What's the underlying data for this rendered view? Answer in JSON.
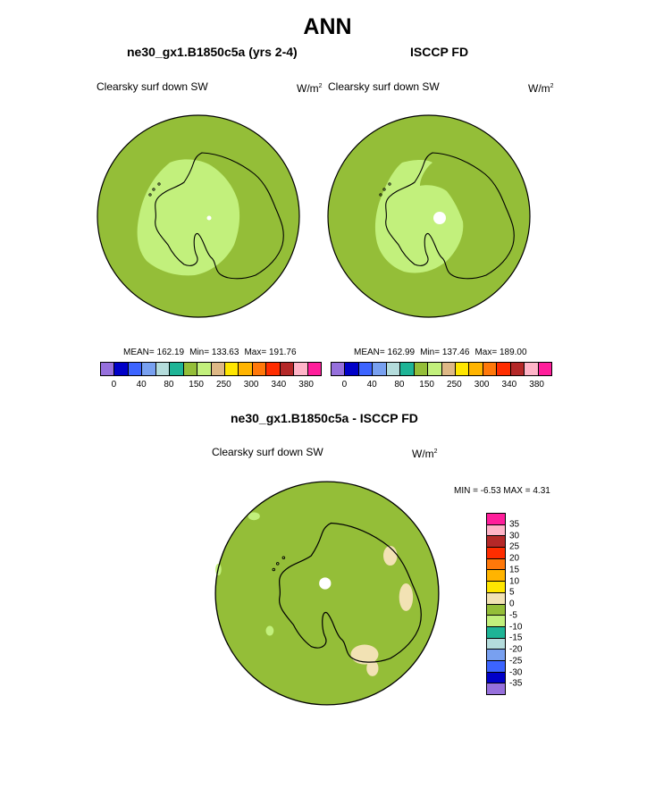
{
  "page_title": "ANN",
  "colors": {
    "background_field": "#94be38",
    "light_field": "#c2f07c",
    "tan_field": "#f2e2b4",
    "coast": "#000000",
    "missing": "#ffffff"
  },
  "palette": [
    "#9670dc",
    "#0000c8",
    "#3c64ff",
    "#78a0f0",
    "#b4dcdc",
    "#1eb496",
    "#94be38",
    "#c2f07c",
    "#deb886",
    "#ffe600",
    "#ffb400",
    "#ff780a",
    "#ff2d00",
    "#b42828",
    "#ffb4c8",
    "#ff1e9b"
  ],
  "diff_palette": [
    "#9670dc",
    "#0000c8",
    "#3c64ff",
    "#78a0f0",
    "#b4dcdc",
    "#1eb496",
    "#c2f07c",
    "#94be38",
    "#f2e2b4",
    "#ffe600",
    "#ffb400",
    "#ff780a",
    "#ff2d00",
    "#b42828",
    "#ffb4c8",
    "#ff1e9b"
  ],
  "chart_data": [
    {
      "type": "heatmap",
      "projection": "polar stereographic (south pole)",
      "title": "ne30_gx1.B1850c5a (yrs 2-4)",
      "variable": "Clearsky surf down SW",
      "units": "W/m",
      "units_exp": "2",
      "mean_text": "MEAN= 162.19",
      "min_text": "Min= 133.63",
      "max_text": "Max= 191.76",
      "mean": 162.19,
      "min": 133.63,
      "max": 191.76,
      "colorbar_labels": [
        "0",
        "40",
        "80",
        "150",
        "250",
        "300",
        "340",
        "380"
      ]
    },
    {
      "type": "heatmap",
      "projection": "polar stereographic (south pole)",
      "title": "ISCCP FD",
      "variable": "Clearsky surf down SW",
      "units": "W/m",
      "units_exp": "2",
      "mean_text": "MEAN= 162.99",
      "min_text": "Min= 137.46",
      "max_text": "Max= 189.00",
      "mean": 162.99,
      "min": 137.46,
      "max": 189.0,
      "colorbar_labels": [
        "0",
        "40",
        "80",
        "150",
        "250",
        "300",
        "340",
        "380"
      ]
    },
    {
      "type": "heatmap",
      "projection": "polar stereographic (south pole)",
      "title": "ne30_gx1.B1850c5a - ISCCP FD",
      "variable": "Clearsky surf down SW",
      "units": "W/m",
      "units_exp": "2",
      "minmax_text": "MIN =  -6.53 MAX =   4.31",
      "min": -6.53,
      "max": 4.31,
      "colorbar_labels": [
        "35",
        "30",
        "25",
        "20",
        "15",
        "10",
        "5",
        "0",
        "-5",
        "-10",
        "-15",
        "-20",
        "-25",
        "-30",
        "-35"
      ]
    }
  ]
}
